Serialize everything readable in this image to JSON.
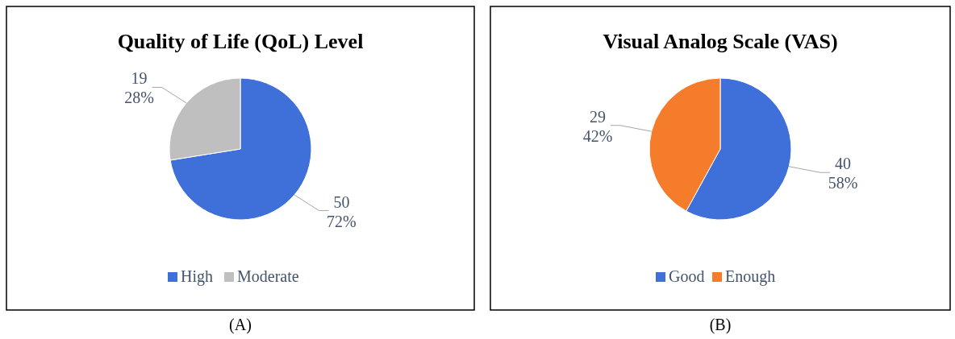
{
  "chart_data": [
    {
      "type": "pie",
      "title": "Quality of Life (QoL) Level",
      "categories": [
        "High",
        "Moderate"
      ],
      "values": [
        50,
        19
      ],
      "colors": [
        "#3f6fd8",
        "#bfbfbf"
      ],
      "value_labels": [
        "50\n72%",
        "19\n28%"
      ],
      "legend": "bottom",
      "annotations": [
        "(A)"
      ]
    },
    {
      "type": "pie",
      "title": "Visual Analog Scale (VAS)",
      "categories": [
        "Good",
        "Enough"
      ],
      "values": [
        40,
        29
      ],
      "colors": [
        "#3f6fd8",
        "#f57c2a"
      ],
      "value_labels": [
        "40\n58%",
        "29\n42%"
      ],
      "legend": "bottom",
      "annotations": [
        "(B)"
      ]
    }
  ]
}
